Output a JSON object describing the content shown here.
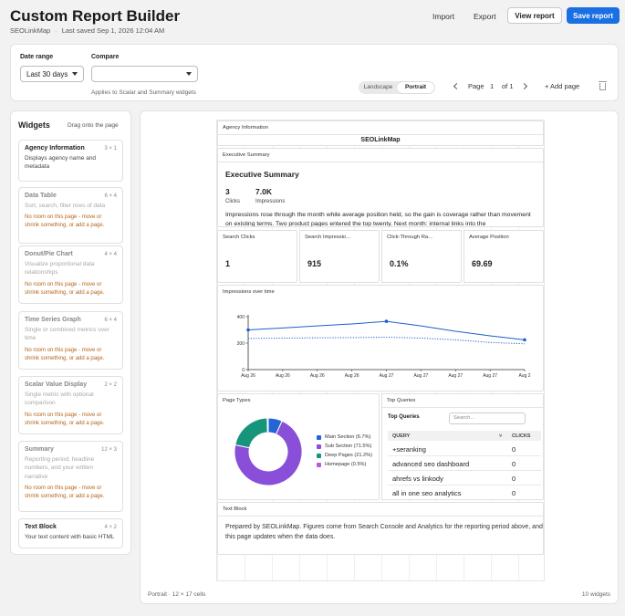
{
  "header": {
    "title": "Custom Report Builder",
    "account": "SEOLinkMap",
    "saved": "Last saved Sep 1, 2026 12:04 AM",
    "import_label": "Import",
    "export_label": "Export",
    "view_label": "View report",
    "save_label": "Save report"
  },
  "controls": {
    "date_range_label": "Date range",
    "date_range_value": "Last 30 days",
    "compare_label": "Compare",
    "compare_value": "",
    "compare_hint": "Applies to Scalar and Summary widgets",
    "orientation": [
      "Landscape",
      "Portrait"
    ],
    "orientation_selected": "Portrait",
    "page_label": "Page",
    "page_current": "1",
    "page_of": "of 1",
    "add_page_label": "+ Add page"
  },
  "widgets_panel": {
    "title": "Widgets",
    "hint": "Drag onto the page",
    "items": [
      {
        "name": "Agency Information",
        "size": "3 × 1",
        "desc": "Displays agency name and metadata",
        "warning": "",
        "enabled": true
      },
      {
        "name": "Data Table",
        "size": "6 × 4",
        "desc": "Sort, search, filter rows of data",
        "warning": "No room on this page - move or shrink something, or add a page.",
        "enabled": false
      },
      {
        "name": "Donut/Pie Chart",
        "size": "4 × 4",
        "desc": "Visualize proportional data relationships",
        "warning": "No room on this page - move or shrink something, or add a page.",
        "enabled": false
      },
      {
        "name": "Time Series Graph",
        "size": "6 × 4",
        "desc": "Single or combined metrics over time",
        "warning": "No room on this page - move or shrink something, or add a page.",
        "enabled": false
      },
      {
        "name": "Scalar Value Display",
        "size": "2 × 2",
        "desc": "Single metric with optional comparison",
        "warning": "No room on this page - move or shrink something, or add a page.",
        "enabled": false
      },
      {
        "name": "Summary",
        "size": "12 × 3",
        "desc": "Reporting period, headline numbers, and your written narrative",
        "warning": "No room on this page - move or shrink something, or add a page.",
        "enabled": false
      },
      {
        "name": "Text Block",
        "size": "4 × 2",
        "desc": "Your text content with basic HTML",
        "warning": "",
        "enabled": true
      }
    ]
  },
  "canvas": {
    "footer_left": "Portrait · 12 × 17 cells",
    "footer_right": "10 widgets",
    "agency": {
      "title": "Agency Information",
      "name": "SEOLinkMap"
    },
    "summary": {
      "title": "Executive Summary",
      "heading": "Executive Summary",
      "clicks_value": "3",
      "clicks_label": "Clicks",
      "impr_value": "7.0K",
      "impr_label": "Impressions",
      "text": "Impressions rose through the month while average position held, so the gain is coverage rather than movement on existing terms. Two product pages entered the top twenty. Next month: internal links into the"
    },
    "kpis": [
      {
        "title": "Search Clicks",
        "value": "1"
      },
      {
        "title": "Search Impressio...",
        "value": "915"
      },
      {
        "title": "Click-Through Ra...",
        "value": "0.1%"
      },
      {
        "title": "Average Position",
        "value": "69.69"
      }
    ],
    "timeseries_title": "Impressions over time",
    "page_types_title": "Page Types",
    "top_queries": {
      "title": "Top Queries",
      "label": "Top Queries",
      "search_placeholder": "Search...",
      "col_query": "QUERY",
      "col_clicks": "CLICKS",
      "sort_glyph": "˅",
      "rows": [
        {
          "query": "+seranking",
          "clicks": "0"
        },
        {
          "query": "advanced seo dashboard",
          "clicks": "0"
        },
        {
          "query": "ahrefs vs linkody",
          "clicks": "0"
        },
        {
          "query": "all in one seo analytics",
          "clicks": "0"
        }
      ]
    },
    "text_block": {
      "title": "Text Block",
      "text": "Prepared by SEOLinkMap. Figures come from Search Console and Analytics for the reporting period above, and this page updates when the data does."
    }
  },
  "chart_data": [
    {
      "type": "line",
      "x": [
        "Aug 26",
        "Aug 26",
        "Aug 26",
        "Aug 26",
        "Aug 27",
        "Aug 27",
        "Aug 27",
        "Aug 27",
        "Aug 2"
      ],
      "yticks": [
        0,
        200,
        400
      ],
      "ylim": [
        0,
        400
      ],
      "series": [
        {
          "style": "solid",
          "color": "#1a5fd0",
          "values": [
            300,
            315,
            330,
            345,
            365,
            330,
            290,
            255,
            225
          ]
        },
        {
          "style": "dotted",
          "color": "#1a5fd0",
          "values": [
            235,
            238,
            240,
            242,
            245,
            238,
            225,
            205,
            195
          ]
        }
      ]
    },
    {
      "type": "pie",
      "labels": [
        "Main Section (6.7%)",
        "Sub Section (71.5%)",
        "Deep Pages (21.2%)",
        "Homepage (0.5%)"
      ],
      "values": [
        6.7,
        71.5,
        21.2,
        0.5
      ],
      "colors": [
        "#2464d6",
        "#8a4fd8",
        "#17957a",
        "#b25fd8"
      ]
    }
  ]
}
